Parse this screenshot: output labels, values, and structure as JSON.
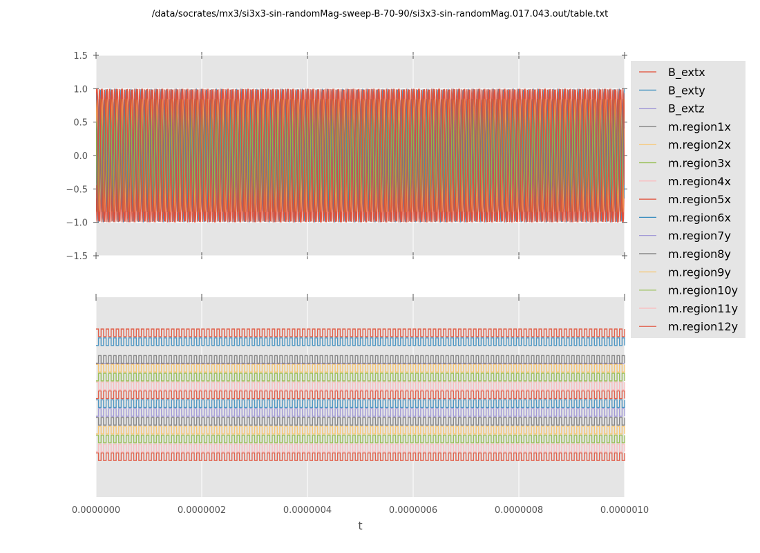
{
  "title": "/data/socrates/mx3/si3x3-sin-randomMag-sweep-B-70-90/si3x3-sin-randomMag.017.043.out/table.txt",
  "chart_data": [
    {
      "type": "line",
      "panel": "top",
      "xlim": [
        0,
        1e-06
      ],
      "ylim": [
        -1.5,
        1.5
      ],
      "yticks": [
        "1.5",
        "1.0",
        "0.5",
        "0.0",
        "−0.5",
        "−1.0",
        "−1.5"
      ],
      "ytick_values": [
        1.5,
        1.0,
        0.5,
        0.0,
        -0.5,
        -1.0,
        -1.5
      ],
      "grid": true,
      "description_of_signal": "sinusoids",
      "amplitude": 1.0,
      "frequency_hz": 105000000,
      "series_visible": [
        "B_extx",
        "B_exty",
        "m.region1x",
        "m.region2x",
        "m.region3x",
        "m.region5x",
        "m.region6x",
        "m.region12y"
      ]
    },
    {
      "type": "line",
      "panel": "bottom",
      "xlim": [
        0,
        1e-06
      ],
      "xticks": [
        "0.0000000",
        "0.0000002",
        "0.0000004",
        "0.0000006",
        "0.0000008",
        "0.0000010"
      ],
      "xtick_values": [
        0,
        2e-07,
        4e-07,
        6e-07,
        8e-07,
        1e-06
      ],
      "xlabel": "t",
      "grid": true,
      "description_of_signal": "stacked square waves",
      "frequency_hz": 105000000
    }
  ],
  "legend": {
    "placement": "right",
    "entries": [
      {
        "label": "B_extx",
        "color": "#E24A33"
      },
      {
        "label": "B_exty",
        "color": "#348ABD"
      },
      {
        "label": "B_extz",
        "color": "#988ED5"
      },
      {
        "label": "m.region1x",
        "color": "#777777"
      },
      {
        "label": "m.region2x",
        "color": "#FBC15E"
      },
      {
        "label": "m.region3x",
        "color": "#8EBA42"
      },
      {
        "label": "m.region4x",
        "color": "#FFB5B8"
      },
      {
        "label": "m.region5x",
        "color": "#E24A33"
      },
      {
        "label": "m.region6x",
        "color": "#348ABD"
      },
      {
        "label": "m.region7y",
        "color": "#988ED5"
      },
      {
        "label": "m.region8y",
        "color": "#777777"
      },
      {
        "label": "m.region9y",
        "color": "#FBC15E"
      },
      {
        "label": "m.region10y",
        "color": "#8EBA42"
      },
      {
        "label": "m.region11y",
        "color": "#FFB5B8"
      },
      {
        "label": "m.region12y",
        "color": "#E24A33"
      }
    ]
  },
  "colors": {
    "axes_bg": "#E5E5E5",
    "grid": "#FFFFFF",
    "tick_text": "#555555"
  }
}
